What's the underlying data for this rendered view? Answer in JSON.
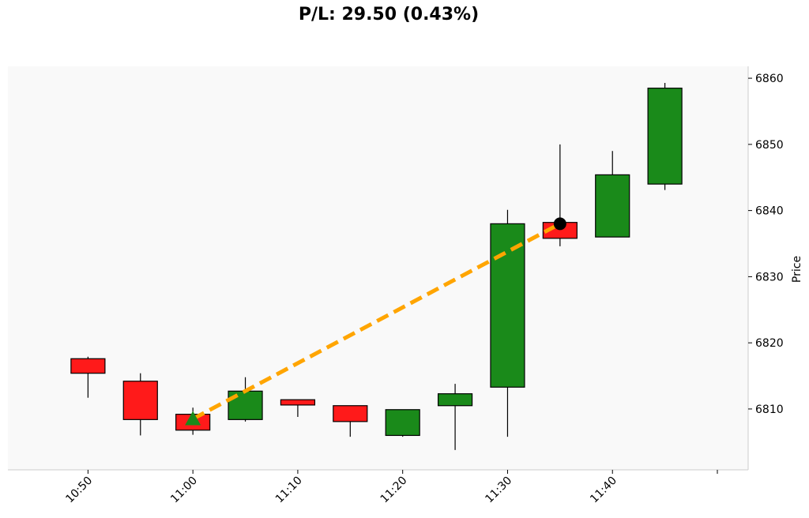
{
  "chart_data": {
    "type": "candlestick",
    "title": "P/L: 29.50 (0.43%)",
    "ylabel": "Price",
    "xlabel": "",
    "ylim": [
      6800.8,
      6861.8
    ],
    "y_ticks": [
      6810,
      6820,
      6830,
      6840,
      6850,
      6860
    ],
    "x_ticks": [
      "10:50",
      "11:00",
      "11:10",
      "11:20",
      "11:30",
      "11:40"
    ],
    "x_range_minutes": [
      "10:45",
      "11:50"
    ],
    "grid": false,
    "colors": {
      "up": "#1a8a1a",
      "down": "#ff1a1a",
      "trade_line": "#ffa500",
      "entry_marker": "#1a8a1a",
      "exit_marker": "#000000",
      "plot_background": "#f9f9f9"
    },
    "candles": [
      {
        "time": "10:50",
        "open": 6817.6,
        "high": 6817.9,
        "low": 6811.7,
        "close": 6815.4
      },
      {
        "time": "10:55",
        "open": 6814.2,
        "high": 6815.4,
        "low": 6806.0,
        "close": 6808.4
      },
      {
        "time": "11:00",
        "open": 6809.2,
        "high": 6810.2,
        "low": 6806.1,
        "close": 6806.8
      },
      {
        "time": "11:05",
        "open": 6808.4,
        "high": 6814.8,
        "low": 6808.1,
        "close": 6812.7
      },
      {
        "time": "11:10",
        "open": 6811.4,
        "high": 6811.4,
        "low": 6808.8,
        "close": 6810.6
      },
      {
        "time": "11:15",
        "open": 6810.5,
        "high": 6810.5,
        "low": 6805.8,
        "close": 6808.1
      },
      {
        "time": "11:20",
        "open": 6806.0,
        "high": 6809.9,
        "low": 6805.8,
        "close": 6809.9
      },
      {
        "time": "11:25",
        "open": 6810.5,
        "high": 6813.8,
        "low": 6803.8,
        "close": 6812.3
      },
      {
        "time": "11:30",
        "open": 6813.3,
        "high": 6840.1,
        "low": 6805.8,
        "close": 6838.0
      },
      {
        "time": "11:35",
        "open": 6838.2,
        "high": 6850.0,
        "low": 6834.6,
        "close": 6835.8
      },
      {
        "time": "11:40",
        "open": 6836.0,
        "high": 6849.0,
        "low": 6836.0,
        "close": 6845.4
      },
      {
        "time": "11:45",
        "open": 6844.0,
        "high": 6859.3,
        "low": 6843.1,
        "close": 6858.5
      }
    ],
    "trade": {
      "entry": {
        "time": "11:00",
        "price": 6808.5,
        "marker": "triangle-up"
      },
      "exit": {
        "time": "11:35",
        "price": 6838.0,
        "marker": "circle"
      }
    }
  }
}
